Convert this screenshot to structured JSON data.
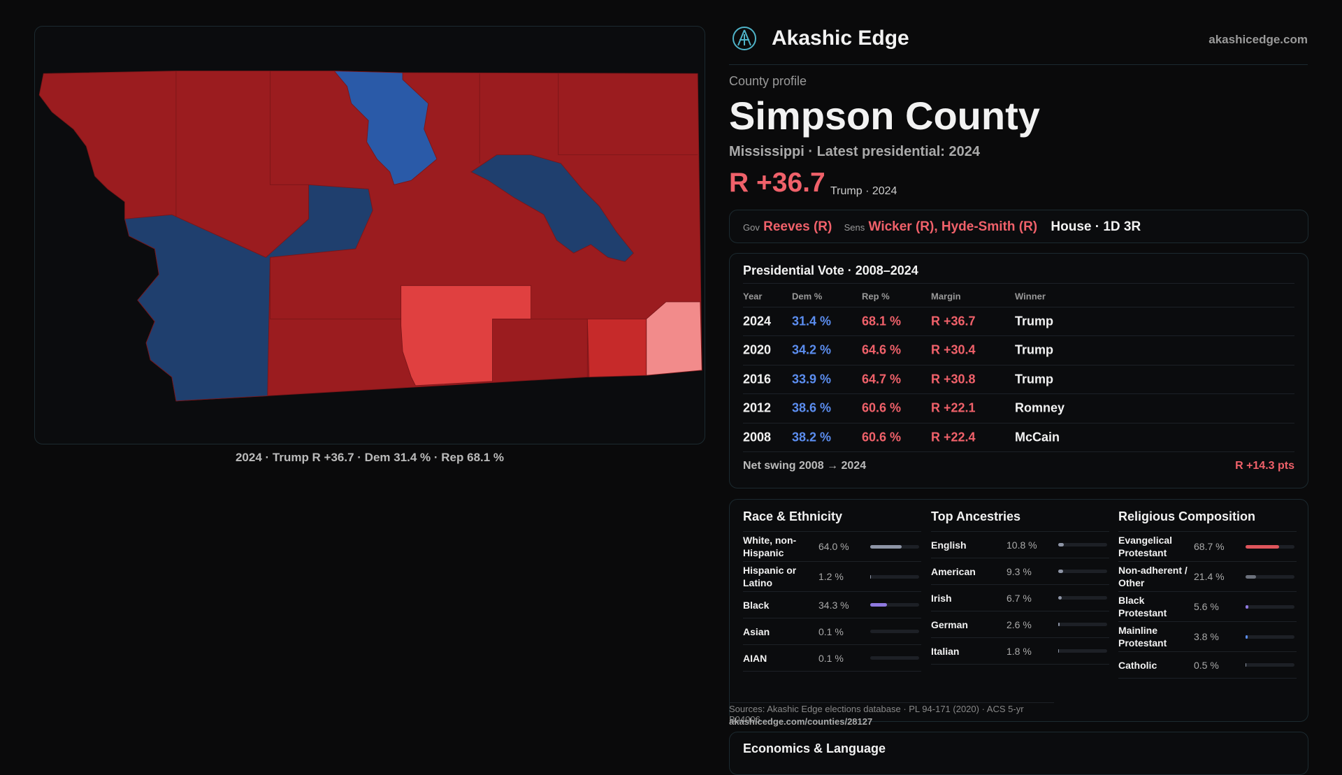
{
  "header": {
    "brand": "Akashic Edge",
    "site": "akashicedge.com"
  },
  "map": {
    "caption": "2024 · Trump R +36.7 · Dem 31.4 % · Rep 68.1 %"
  },
  "profile": {
    "eyebrow": "County profile",
    "title": "Simpson County",
    "subtitle": "Mississippi · Latest presidential: 2024",
    "margin": "R +36.7",
    "margin_note": "Trump · 2024"
  },
  "officials": {
    "gov_label": "Gov",
    "gov": "Reeves (R)",
    "sens_label": "Sens",
    "sens": "Wicker (R), Hyde-Smith (R)",
    "house": "House · 1D 3R"
  },
  "presidential": {
    "title": "Presidential Vote · 2008–2024",
    "columns": [
      "Year",
      "Dem %",
      "Rep %",
      "Margin",
      "Winner"
    ],
    "rows": [
      [
        "2024",
        "31.4 %",
        "68.1 %",
        "R +36.7",
        "Trump"
      ],
      [
        "2020",
        "34.2 %",
        "64.6 %",
        "R +30.4",
        "Trump"
      ],
      [
        "2016",
        "33.9 %",
        "64.7 %",
        "R +30.8",
        "Trump"
      ],
      [
        "2012",
        "38.6 %",
        "60.6 %",
        "R +22.1",
        "Romney"
      ],
      [
        "2008",
        "38.2 %",
        "60.6 %",
        "R +22.4",
        "McCain"
      ]
    ],
    "swing_label": "Net swing 2008 → 2024",
    "swing": "R +14.3 pts"
  },
  "demographics": [
    {
      "title": "Race & Ethnicity",
      "rows": [
        {
          "label": "White, non-Hispanic",
          "value": 64.0,
          "value_label": "64.0 %",
          "color": "#8e95a6"
        },
        {
          "label": "Hispanic or Latino",
          "value": 1.2,
          "value_label": "1.2 %",
          "color": "#8e95a6"
        },
        {
          "label": "Black",
          "value": 34.3,
          "value_label": "34.3 %",
          "color": "#8f79e0"
        },
        {
          "label": "Asian",
          "value": 0.1,
          "value_label": "0.1 %",
          "color": "#8e95a6"
        },
        {
          "label": "AIAN",
          "value": 0.1,
          "value_label": "0.1 %",
          "color": "#8e95a6"
        }
      ]
    },
    {
      "title": "Top Ancestries",
      "rows": [
        {
          "label": "English",
          "value": 10.8,
          "value_label": "10.8 %",
          "color": "#8e95a6"
        },
        {
          "label": "American",
          "value": 9.3,
          "value_label": "9.3 %",
          "color": "#8e95a6"
        },
        {
          "label": "Irish",
          "value": 6.7,
          "value_label": "6.7 %",
          "color": "#8e95a6"
        },
        {
          "label": "German",
          "value": 2.6,
          "value_label": "2.6 %",
          "color": "#8e95a6"
        },
        {
          "label": "Italian",
          "value": 1.8,
          "value_label": "1.8 %",
          "color": "#8e95a6"
        }
      ]
    },
    {
      "title": "Religious Composition",
      "rows": [
        {
          "label": "Evangelical Protestant",
          "value": 68.7,
          "value_label": "68.7 %",
          "color": "#e0555c"
        },
        {
          "label": "Non-adherent / Other",
          "value": 21.4,
          "value_label": "21.4 %",
          "color": "#6c717c"
        },
        {
          "label": "Black Protestant",
          "value": 5.6,
          "value_label": "5.6 %",
          "color": "#8f79e0"
        },
        {
          "label": "Mainline Protestant",
          "value": 3.8,
          "value_label": "3.8 %",
          "color": "#5b8def"
        },
        {
          "label": "Catholic",
          "value": 0.5,
          "value_label": "0.5 %",
          "color": "#8e95a6"
        }
      ]
    }
  ],
  "sources": {
    "text": "Sources: Akashic Edge elections database · PL 94-171 (2020) · ACS 5-yr B04006",
    "url": "akashicedge.com/counties/28127"
  },
  "economics": {
    "title": "Economics & Language"
  }
}
